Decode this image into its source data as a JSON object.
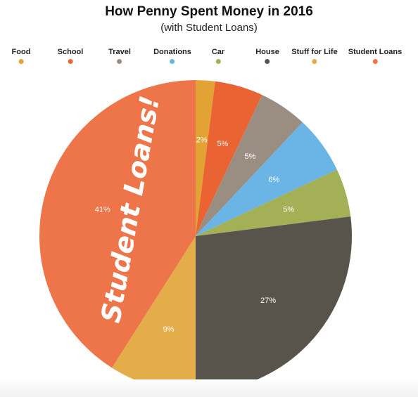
{
  "chart_data": {
    "type": "pie",
    "title": "How Penny Spent Money in 2016",
    "subtitle": "(with Student Loans)",
    "callout": "Student Loans!",
    "legend_position": "top",
    "slices": [
      {
        "name": "Food",
        "value": 2,
        "label": "2%",
        "color": "#E2A234"
      },
      {
        "name": "School",
        "value": 5,
        "label": "5%",
        "color": "#EA6332"
      },
      {
        "name": "Travel",
        "value": 5,
        "label": "5%",
        "color": "#9A8E82"
      },
      {
        "name": "Donations",
        "value": 6,
        "label": "6%",
        "color": "#6AB5E6"
      },
      {
        "name": "Car",
        "value": 5,
        "label": "5%",
        "color": "#A4B055"
      },
      {
        "name": "House",
        "value": 27,
        "label": "27%",
        "color": "#58544C"
      },
      {
        "name": "Stuff for Life",
        "value": 9,
        "label": "9%",
        "color": "#E3AD4A"
      },
      {
        "name": "Student Loans",
        "value": 41,
        "label": "41%",
        "color": "#EE7549"
      }
    ]
  }
}
